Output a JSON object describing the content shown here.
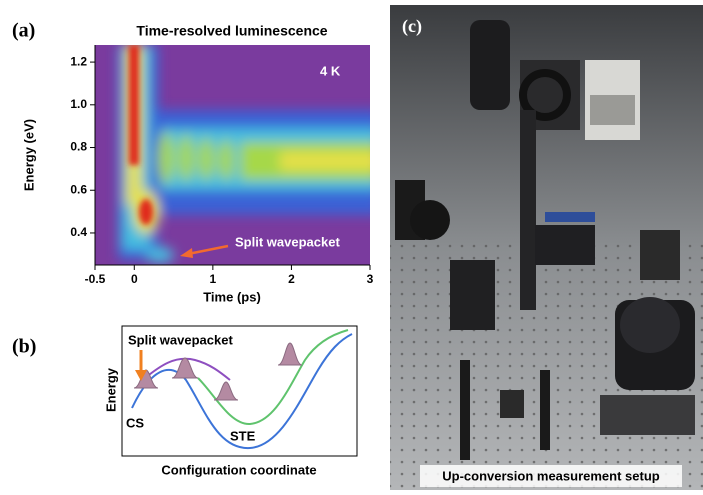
{
  "chart_data": {
    "type": "heatmap",
    "panel_label": "(a)",
    "title": "Time-resolved luminescence",
    "xlabel": "Time (ps)",
    "ylabel": "Energy (eV)",
    "xlim": [
      -0.5,
      3
    ],
    "ylim": [
      0.25,
      1.28
    ],
    "xticks": [
      -0.5,
      0,
      1,
      2,
      3
    ],
    "yticks": [
      0.4,
      0.6,
      0.8,
      {
        "value": 1,
        "label": "1.0"
      },
      1.2
    ],
    "annotations": [
      "4 K",
      "Split wavepacket"
    ]
  },
  "panel_b": {
    "label": "(b)",
    "title": "Split wavepacket",
    "ylabel": "Energy",
    "xlabel": "Configuration coordinate",
    "states": [
      "CS",
      "STE"
    ]
  },
  "panel_c": {
    "label": "(c)",
    "caption": "Up-conversion measurement setup"
  }
}
